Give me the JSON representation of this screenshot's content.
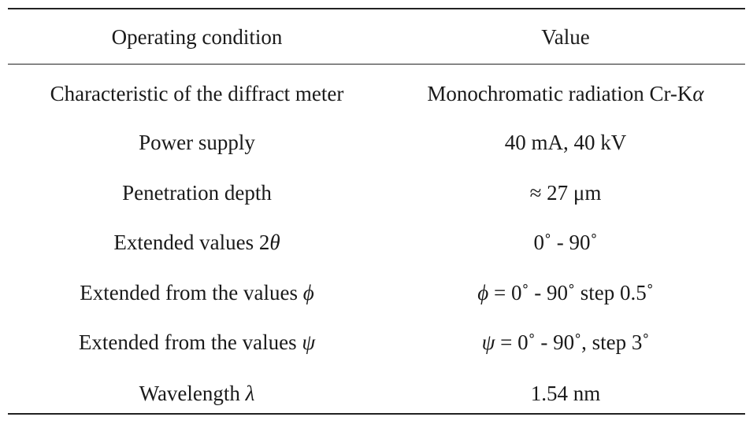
{
  "table": {
    "headers": {
      "condition": "Operating condition",
      "value": "Value"
    },
    "rows": [
      {
        "condition": "Characteristic of the diffract meter",
        "value": "Monochromatic radiation Cr-Kα"
      },
      {
        "condition": "Power supply",
        "value": "40 mA, 40 kV"
      },
      {
        "condition": "Penetration depth",
        "value": "≈ 27 μm"
      },
      {
        "condition": "Extended values 2θ",
        "value": "0˚ - 90˚"
      },
      {
        "condition": "Extended from the values   ϕ",
        "value": "ϕ  = 0˚ - 90˚ step 0.5˚"
      },
      {
        "condition": "Extended from the values   ψ",
        "value": "ψ  = 0˚ - 90˚, step 3˚"
      },
      {
        "condition": "Wavelength   λ",
        "value": "1.54 nm"
      }
    ]
  }
}
